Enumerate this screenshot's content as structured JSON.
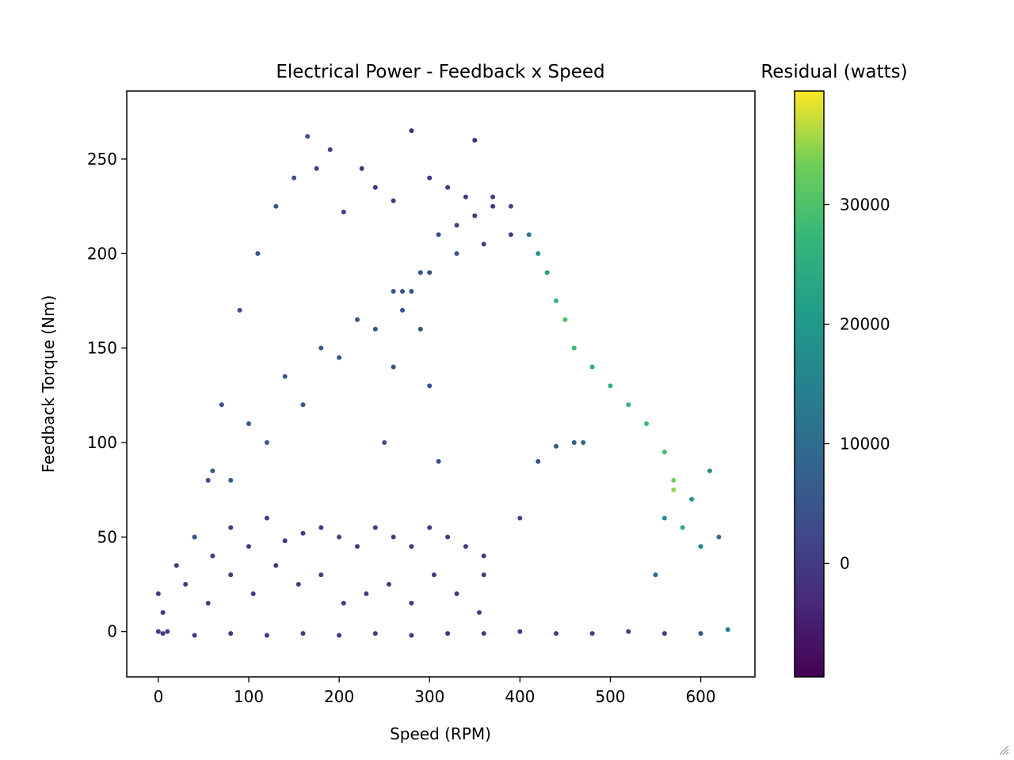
{
  "chart_data": {
    "type": "scatter",
    "title": "Electrical Power - Feedback x Speed",
    "xlabel": "Speed (RPM)",
    "ylabel": "Feedback Torque (Nm)",
    "xlim": [
      -35,
      660
    ],
    "ylim": [
      -24,
      286
    ],
    "xticks": [
      0,
      100,
      200,
      300,
      400,
      500,
      600
    ],
    "yticks": [
      0,
      50,
      100,
      150,
      200,
      250
    ],
    "colorbar": {
      "label": "Residual (watts)",
      "range": [
        -9500,
        39500
      ],
      "ticks": [
        0,
        10000,
        20000,
        30000
      ],
      "colormap": "viridis"
    },
    "series": [
      {
        "x": [
          0,
          5,
          10,
          40,
          80,
          120,
          160,
          200,
          240,
          280,
          320,
          360,
          400,
          440,
          480,
          520,
          560,
          600,
          630
        ],
        "y": [
          0,
          -1,
          0,
          -2,
          -1,
          -2,
          -1,
          -2,
          -1,
          -2,
          -1,
          -1,
          0,
          -1,
          -1,
          0,
          -1,
          -1,
          1
        ],
        "residual": [
          0,
          0,
          0,
          0,
          0,
          0,
          0,
          0,
          0,
          0,
          0,
          0,
          0,
          0,
          0,
          0,
          0,
          4000,
          14000
        ]
      },
      {
        "x": [
          0,
          20,
          40,
          60,
          80,
          100,
          120,
          140,
          160,
          180,
          200,
          220,
          240,
          260,
          280,
          300,
          320,
          340,
          360
        ],
        "y": [
          20,
          35,
          50,
          40,
          55,
          45,
          60,
          48,
          52,
          55,
          50,
          45,
          55,
          50,
          45,
          55,
          50,
          45,
          30
        ],
        "residual": [
          0,
          0,
          0,
          0,
          0,
          0,
          0,
          0,
          0,
          0,
          0,
          0,
          0,
          0,
          0,
          0,
          0,
          0,
          0
        ]
      },
      {
        "x": [
          5,
          30,
          55,
          80,
          105,
          130,
          155,
          180,
          205,
          230,
          255,
          280,
          305,
          330,
          355
        ],
        "y": [
          10,
          25,
          15,
          30,
          20,
          35,
          25,
          30,
          15,
          20,
          25,
          15,
          30,
          20,
          10
        ],
        "residual": [
          0,
          0,
          0,
          0,
          0,
          0,
          0,
          0,
          0,
          0,
          0,
          0,
          0,
          0,
          0
        ]
      },
      {
        "x": [
          55,
          70,
          90,
          110,
          130,
          150,
          165,
          175,
          190,
          205,
          225,
          240,
          260,
          280,
          300,
          320,
          340,
          350
        ],
        "y": [
          80,
          120,
          170,
          200,
          225,
          240,
          262,
          245,
          255,
          222,
          245,
          235,
          228,
          265,
          240,
          235,
          230,
          260
        ],
        "residual": [
          4000,
          4000,
          4000,
          4000,
          4000,
          4000,
          4000,
          2000,
          2000,
          0,
          0,
          0,
          0,
          -2000,
          0,
          0,
          0,
          -3000
        ]
      },
      {
        "x": [
          60,
          100,
          140,
          180,
          220,
          260,
          290,
          310,
          330,
          350,
          370
        ],
        "y": [
          85,
          110,
          135,
          150,
          165,
          180,
          190,
          210,
          215,
          220,
          225
        ],
        "residual": [
          5000,
          5000,
          5000,
          5000,
          5000,
          4500,
          4000,
          3000,
          2000,
          0,
          -1000
        ]
      },
      {
        "x": [
          40,
          80,
          120,
          160,
          200,
          240,
          270,
          300,
          330,
          360,
          390
        ],
        "y": [
          50,
          80,
          100,
          120,
          145,
          160,
          180,
          190,
          200,
          205,
          210
        ],
        "residual": [
          6000,
          6000,
          6000,
          5500,
          5500,
          5000,
          4500,
          4000,
          3000,
          1000,
          0
        ]
      },
      {
        "x": [
          370,
          390,
          410,
          420,
          430,
          440,
          450,
          460,
          480,
          500,
          520,
          540,
          560,
          570
        ],
        "y": [
          230,
          225,
          210,
          200,
          190,
          175,
          165,
          150,
          140,
          130,
          120,
          110,
          95,
          80
        ],
        "residual": [
          0,
          2000,
          12000,
          18000,
          22000,
          26000,
          30000,
          28000,
          25000,
          26000,
          27000,
          28000,
          29000,
          33000
        ]
      },
      {
        "x": [
          550,
          560,
          570,
          580,
          590,
          600,
          610,
          620
        ],
        "y": [
          30,
          60,
          75,
          55,
          70,
          45,
          85,
          50
        ],
        "residual": [
          10000,
          18000,
          35000,
          25000,
          20000,
          15000,
          18000,
          10000
        ]
      },
      {
        "x": [
          360,
          400,
          420,
          440,
          460,
          470
        ],
        "y": [
          40,
          60,
          90,
          98,
          100,
          100
        ],
        "residual": [
          0,
          2000,
          4000,
          5000,
          7000,
          8000
        ]
      },
      {
        "x": [
          250,
          260,
          270,
          280,
          290,
          300,
          310
        ],
        "y": [
          100,
          140,
          170,
          180,
          160,
          130,
          90
        ],
        "residual": [
          4000,
          4000,
          4000,
          4500,
          4000,
          4000,
          3500
        ]
      }
    ]
  }
}
